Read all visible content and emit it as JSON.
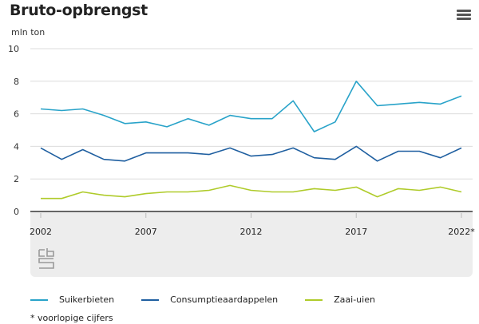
{
  "header": {
    "title": "Bruto-opbrengst",
    "menu_icon": "hamburger-menu-icon"
  },
  "footnote": "* voorlopige cijfers",
  "logo": "cbs-logo",
  "chart_data": {
    "type": "line",
    "title": "Bruto-opbrengst",
    "ylabel": "mln ton",
    "xlabel": "",
    "ylim": [
      0,
      10
    ],
    "yticks": [
      0,
      2,
      4,
      6,
      8,
      10
    ],
    "grid": true,
    "x": [
      2002,
      2003,
      2004,
      2005,
      2006,
      2007,
      2008,
      2009,
      2010,
      2011,
      2012,
      2013,
      2014,
      2015,
      2016,
      2017,
      2018,
      2019,
      2020,
      2021,
      2022
    ],
    "xticks": [
      {
        "value": 2002,
        "label": "2002"
      },
      {
        "value": 2007,
        "label": "2007"
      },
      {
        "value": 2012,
        "label": "2012"
      },
      {
        "value": 2017,
        "label": "2017"
      },
      {
        "value": 2022,
        "label": "2022*"
      }
    ],
    "legend_position": "bottom",
    "series": [
      {
        "name": "Suikerbieten",
        "color": "#29a3c9",
        "values": [
          6.3,
          6.2,
          6.3,
          5.9,
          5.4,
          5.5,
          5.2,
          5.7,
          5.3,
          5.9,
          5.7,
          5.7,
          6.8,
          4.9,
          5.5,
          8.0,
          6.5,
          6.6,
          6.7,
          6.6,
          7.1
        ]
      },
      {
        "name": "Consumptieaardappelen",
        "color": "#1f5fa0",
        "values": [
          3.9,
          3.2,
          3.8,
          3.2,
          3.1,
          3.6,
          3.6,
          3.6,
          3.5,
          3.9,
          3.4,
          3.5,
          3.9,
          3.3,
          3.2,
          4.0,
          3.1,
          3.7,
          3.7,
          3.3,
          3.9
        ]
      },
      {
        "name": "Zaai-uien",
        "color": "#afcb2a",
        "values": [
          0.8,
          0.8,
          1.2,
          1.0,
          0.9,
          1.1,
          1.2,
          1.2,
          1.3,
          1.6,
          1.3,
          1.2,
          1.2,
          1.4,
          1.3,
          1.5,
          0.9,
          1.4,
          1.3,
          1.5,
          1.2
        ]
      }
    ]
  }
}
